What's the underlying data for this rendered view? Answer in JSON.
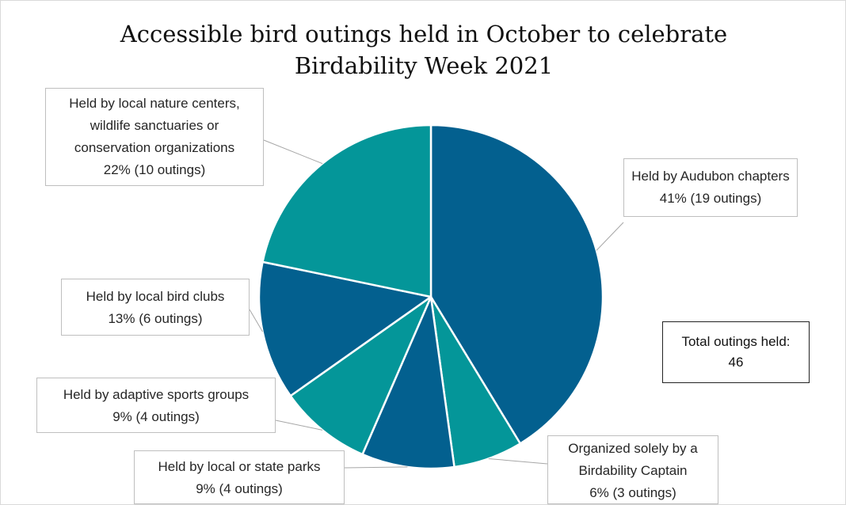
{
  "chart_data": {
    "type": "pie",
    "title_lines": [
      "Accessible bird outings held in October to celebrate",
      "Birdability Week 2021"
    ],
    "slices": [
      {
        "label_lines": [
          "Held by Audubon chapters",
          "41% (19 outings)"
        ],
        "value": 19,
        "percent": "41%",
        "color": "#03608f"
      },
      {
        "label_lines": [
          "Organized solely by a",
          "Birdability Captain",
          "6% (3 outings)"
        ],
        "value": 3,
        "percent": "6%",
        "color": "#049699"
      },
      {
        "label_lines": [
          "Held by local or state parks",
          "9% (4 outings)"
        ],
        "value": 4,
        "percent": "9%",
        "color": "#03608f"
      },
      {
        "label_lines": [
          "Held by adaptive sports groups",
          "9% (4 outings)"
        ],
        "value": 4,
        "percent": "9%",
        "color": "#049699"
      },
      {
        "label_lines": [
          "Held by local bird clubs",
          "13% (6 outings)"
        ],
        "value": 6,
        "percent": "13%",
        "color": "#03608f"
      },
      {
        "label_lines": [
          "Held by local nature centers,",
          "wildlife sanctuaries or",
          "conservation organizations",
          "22% (10 outings)"
        ],
        "value": 10,
        "percent": "22%",
        "color": "#049699"
      }
    ],
    "total_label_lines": [
      "Total outings held:",
      "46"
    ],
    "legend": "none"
  }
}
